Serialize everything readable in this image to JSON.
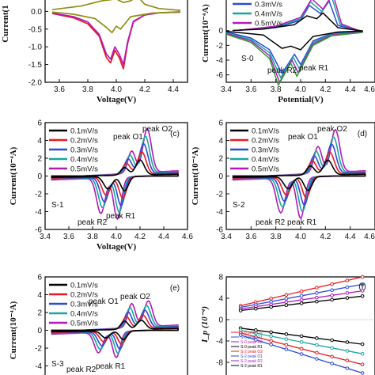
{
  "colors": {
    "0.1mV/s": "#000000",
    "0.2mV/s": "#e8191e",
    "0.3mV/s": "#2b4bd6",
    "0.4mV/s": "#17a6a0",
    "0.5mV/s": "#b01bb8",
    "olive": "#8e8e12"
  },
  "chart_data": [
    {
      "id": "a",
      "type": "line",
      "xlim": [
        3.5,
        4.5
      ],
      "ylim": [
        -2.0,
        0.5
      ],
      "xticks": [
        "3.6",
        "3.8",
        "4.0",
        "4.2",
        "4.4"
      ],
      "yticks": [
        "0.0",
        "-0.5",
        "-1.0",
        "-1.5",
        "-2.0"
      ],
      "yticks_partial": [
        "0.5"
      ],
      "xlabel": "Voltage(V)",
      "ylabel": "Current(1",
      "series": [
        {
          "color": "#e8191e",
          "pts": [
            [
              3.55,
              -0.06
            ],
            [
              3.7,
              -0.18
            ],
            [
              3.8,
              -0.35
            ],
            [
              3.88,
              -0.7
            ],
            [
              3.93,
              -1.3
            ],
            [
              3.96,
              -1.45
            ],
            [
              3.99,
              -1.1
            ],
            [
              4.02,
              -1.3
            ],
            [
              4.05,
              -1.62
            ],
            [
              4.08,
              -0.9
            ],
            [
              4.12,
              -0.3
            ],
            [
              4.2,
              -0.1
            ],
            [
              4.3,
              -0.04
            ],
            [
              4.45,
              -0.02
            ]
          ]
        },
        {
          "color": "#b01bb8",
          "pts": [
            [
              3.55,
              -0.05
            ],
            [
              3.7,
              -0.15
            ],
            [
              3.8,
              -0.3
            ],
            [
              3.88,
              -0.65
            ],
            [
              3.93,
              -1.2
            ],
            [
              3.96,
              -1.35
            ],
            [
              3.99,
              -1.0
            ],
            [
              4.02,
              -1.2
            ],
            [
              4.05,
              -1.5
            ],
            [
              4.08,
              -0.85
            ],
            [
              4.12,
              -0.28
            ],
            [
              4.2,
              -0.1
            ],
            [
              4.3,
              -0.04
            ],
            [
              4.45,
              -0.02
            ]
          ]
        },
        {
          "color": "#8e8e12",
          "pts": [
            [
              3.55,
              -0.02
            ],
            [
              3.7,
              -0.08
            ],
            [
              3.85,
              -0.2
            ],
            [
              3.93,
              -0.45
            ],
            [
              3.97,
              -0.6
            ],
            [
              4.0,
              -0.42
            ],
            [
              4.03,
              -0.5
            ],
            [
              4.06,
              -0.35
            ],
            [
              4.1,
              -0.15
            ],
            [
              4.25,
              -0.05
            ],
            [
              4.45,
              -0.01
            ]
          ]
        },
        {
          "color": "#8e8e12",
          "pts": [
            [
              3.55,
              0.05
            ],
            [
              3.75,
              0.15
            ],
            [
              3.9,
              0.3
            ],
            [
              4.0,
              0.35
            ],
            [
              4.05,
              0.25
            ],
            [
              4.1,
              0.3
            ],
            [
              4.15,
              0.42
            ],
            [
              4.2,
              0.2
            ],
            [
              4.3,
              0.08
            ],
            [
              4.45,
              0.03
            ]
          ]
        }
      ],
      "labels": []
    },
    {
      "id": "b",
      "type": "line",
      "xlim": [
        3.4,
        4.6
      ],
      "ylim": [
        -7,
        5
      ],
      "xticks": [
        "3.4",
        "3.6",
        "3.8",
        "4.0",
        "4.2",
        "4.4",
        "4.6"
      ],
      "yticks": [
        "0",
        "-2",
        "-4",
        "-6"
      ],
      "xlabel": "Potential(V)",
      "ylabel": "Current(10⁻⁴A)",
      "legend": [
        "0.3mV/s",
        "0.4mV/s",
        "0.5mV/s"
      ],
      "sample_label": "S-0",
      "annotations": [
        "peak R2",
        "peak R1"
      ],
      "series": [
        {
          "name": "0.3mV/s",
          "color": "#2b4bd6",
          "pts": [
            [
              3.4,
              -0.2
            ],
            [
              3.6,
              -1.0
            ],
            [
              3.75,
              -2.6
            ],
            [
              3.85,
              -5.8
            ],
            [
              3.95,
              -3.2
            ],
            [
              4.0,
              -4.6
            ],
            [
              4.1,
              -1.4
            ],
            [
              4.25,
              -0.4
            ],
            [
              4.5,
              -0.1
            ],
            [
              4.3,
              0.7
            ],
            [
              4.23,
              4.0
            ],
            [
              4.16,
              2.3
            ],
            [
              4.07,
              3.4
            ],
            [
              4.0,
              1.4
            ],
            [
              3.8,
              0.4
            ],
            [
              3.5,
              0.05
            ]
          ]
        },
        {
          "name": "0.4mV/s",
          "color": "#17a6a0",
          "pts": [
            [
              3.4,
              -0.3
            ],
            [
              3.6,
              -1.2
            ],
            [
              3.75,
              -3.0
            ],
            [
              3.84,
              -6.4
            ],
            [
              3.94,
              -3.6
            ],
            [
              3.99,
              -5.2
            ],
            [
              4.1,
              -1.6
            ],
            [
              4.25,
              -0.5
            ],
            [
              4.5,
              -0.15
            ],
            [
              4.32,
              0.8
            ],
            [
              4.25,
              4.6
            ],
            [
              4.17,
              2.6
            ],
            [
              4.08,
              3.9
            ],
            [
              4.0,
              1.6
            ],
            [
              3.8,
              0.5
            ],
            [
              3.5,
              0.05
            ]
          ]
        },
        {
          "name": "0.5mV/s",
          "color": "#b01bb8",
          "pts": [
            [
              3.4,
              -0.4
            ],
            [
              3.6,
              -1.4
            ],
            [
              3.75,
              -3.4
            ],
            [
              3.83,
              -7.0
            ],
            [
              3.93,
              -4.0
            ],
            [
              3.98,
              -5.7
            ],
            [
              4.1,
              -1.8
            ],
            [
              4.25,
              -0.6
            ],
            [
              4.5,
              -0.2
            ],
            [
              4.33,
              0.9
            ],
            [
              4.26,
              5.0
            ],
            [
              4.18,
              2.9
            ],
            [
              4.09,
              4.3
            ],
            [
              4.0,
              1.8
            ],
            [
              3.8,
              0.6
            ],
            [
              3.5,
              0.05
            ]
          ]
        },
        {
          "name": "green",
          "color": "#2a9e2a",
          "pts": [
            [
              3.4,
              -0.5
            ],
            [
              3.6,
              -1.6
            ],
            [
              3.75,
              -3.8
            ],
            [
              3.82,
              -7.4
            ],
            [
              3.92,
              -4.4
            ],
            [
              3.97,
              -6.2
            ],
            [
              4.1,
              -2.0
            ],
            [
              4.25,
              -0.7
            ],
            [
              4.5,
              -0.25
            ]
          ]
        },
        {
          "name": "0.1mV/s",
          "color": "#000000",
          "pts": [
            [
              3.4,
              -0.1
            ],
            [
              3.7,
              -0.6
            ],
            [
              3.85,
              -2.4
            ],
            [
              3.92,
              -2.1
            ],
            [
              4.0,
              -2.6
            ],
            [
              4.1,
              -0.8
            ],
            [
              4.3,
              -0.2
            ],
            [
              4.5,
              -0.05
            ],
            [
              4.3,
              0.4
            ],
            [
              4.18,
              2.4
            ],
            [
              4.13,
              1.6
            ],
            [
              4.05,
              2.0
            ],
            [
              3.95,
              0.8
            ],
            [
              3.7,
              0.2
            ],
            [
              3.45,
              0.02
            ]
          ]
        }
      ]
    },
    {
      "id": "c",
      "type": "line",
      "xlim": [
        3.4,
        4.6
      ],
      "ylim": [
        -6,
        6
      ],
      "xticks": [
        "3.4",
        "3.6",
        "3.8",
        "4.0",
        "4.2",
        "4.4",
        "4.6"
      ],
      "yticks": [
        "6",
        "4",
        "2",
        "0",
        "-2",
        "-4",
        "-6"
      ],
      "xlabel": "Voltage(V)",
      "ylabel": "Current(10⁻⁴A)",
      "legend": [
        "0.1mV/s",
        "0.2mV/s",
        "0.3mV/s",
        "0.4mV/s",
        "0.5mV/s"
      ],
      "panel_label": "(c)",
      "sample_label": "S-1",
      "annotations": [
        "peak O1",
        "peak O2",
        "peak R2",
        "peak R1"
      ]
    },
    {
      "id": "d",
      "type": "line",
      "xlim": [
        3.4,
        4.6
      ],
      "ylim": [
        -6,
        6
      ],
      "xticks": [
        "3.4",
        "3.6",
        "3.8",
        "4.0",
        "4.2",
        "4.4",
        "4.6"
      ],
      "yticks": [
        "6",
        "4",
        "2",
        "0",
        "-2",
        "-4",
        "-6"
      ],
      "xlabel": "",
      "ylabel": "Current(10⁻⁴A)",
      "legend": [
        "0.1mV/s",
        "0.2mV/s",
        "0.3mV/s",
        "0.4mV/s",
        "0.5mV/s"
      ],
      "panel_label": "(d)",
      "sample_label": "S-2",
      "annotations": [
        "peak O1",
        "peak O2",
        "peak R2",
        "peak R1"
      ]
    },
    {
      "id": "e",
      "type": "line",
      "xlim": [
        3.4,
        4.6
      ],
      "ylim": [
        -6,
        6
      ],
      "yticks": [
        "6",
        "4",
        "2",
        "0",
        "-2",
        "-4",
        "-6"
      ],
      "ylabel": "Current(10⁻⁴A)",
      "legend": [
        "0.1mV/s",
        "0.2mV/s",
        "0.3mV/s",
        "0.4mV/s",
        "0.5mV/s"
      ],
      "panel_label": "(e)",
      "sample_label": "S-3",
      "annotations": [
        "peak O1",
        "peak O2",
        "peak R2",
        "peak R1"
      ]
    },
    {
      "id": "f",
      "type": "line",
      "ylim": [
        -12,
        8
      ],
      "yticks": [
        "8",
        "4",
        "0",
        "-4",
        "-8",
        "-12"
      ],
      "ylabel": "I_p (10⁻⁴)",
      "panel_label": "(f)",
      "legend": [
        "S-0 peak O2",
        "S-0 peak O1",
        "S-0 peak R2",
        "S-0 peak R1",
        "S-2 peak O2",
        "S-2 peak O1",
        "S-2 peak R2",
        "S-2 peak R1"
      ]
    }
  ],
  "cv_model": {
    "scan_rates": [
      "0.1mV/s",
      "0.2mV/s",
      "0.3mV/s",
      "0.4mV/s",
      "0.5mV/s"
    ],
    "scale": [
      1.0,
      1.5,
      2.0,
      2.45,
      2.9
    ],
    "shift": [
      0.0,
      0.015,
      0.03,
      0.045,
      0.06
    ]
  },
  "panel_f_lines": {
    "x_range": [
      0.8,
      7.6
    ],
    "upper": {
      "colors": [
        "#e8191e",
        "#2b4bd6",
        "#b01bb8",
        "#000000"
      ],
      "y0": [
        2.6,
        2.3,
        2.0,
        1.7
      ],
      "y1": [
        8.0,
        6.6,
        5.4,
        4.4
      ]
    },
    "lower": {
      "colors": [
        "#000000",
        "#17a6a0",
        "#e8191e",
        "#2b4bd6"
      ],
      "y0": [
        -1.6,
        -2.0,
        -2.5,
        -2.9
      ],
      "y1": [
        -4.6,
        -6.4,
        -8.4,
        -10.0
      ]
    }
  }
}
